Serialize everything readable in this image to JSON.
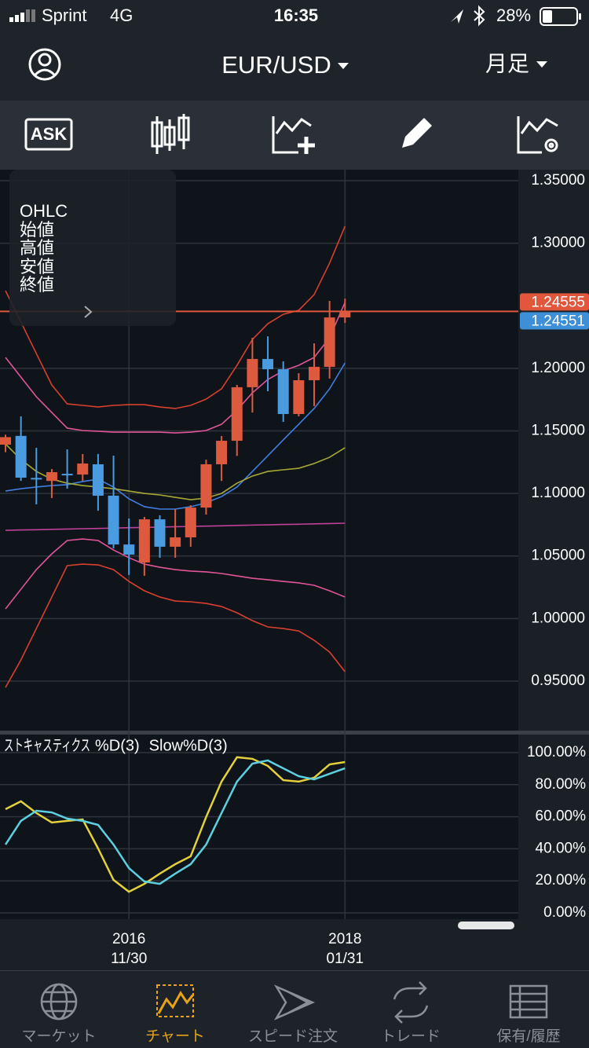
{
  "status_bar": {
    "carrier": "Sprint",
    "network": "4G",
    "time": "16:35",
    "battery": "28%"
  },
  "header": {
    "symbol": "EUR/USD",
    "period": "月足"
  },
  "toolbar": {
    "ask": "ASK"
  },
  "ohlc_panel": {
    "title": "OHLC",
    "rows": [
      "始値",
      "高値",
      "安値",
      "終値"
    ]
  },
  "chart_data": [
    {
      "type": "candlestick",
      "open": [
        1.139,
        1.146,
        1.1124,
        1.11,
        1.1157,
        1.1151,
        1.1233,
        1.0982,
        1.0592,
        1.0448,
        1.0793,
        1.0574,
        1.0649,
        1.0887,
        1.1233,
        1.1421,
        1.1849,
        1.2075,
        1.1993,
        1.1635,
        1.1905,
        1.2012,
        1.2407
      ],
      "high": [
        1.147,
        1.1616,
        1.1365,
        1.1195,
        1.1352,
        1.1315,
        1.1315,
        1.1302,
        1.08,
        1.0812,
        1.0825,
        1.0875,
        1.0906,
        1.127,
        1.1459,
        1.1867,
        1.2244,
        1.2256,
        1.2056,
        1.1961,
        1.22,
        1.2539,
        1.2557
      ],
      "low": [
        1.133,
        1.11,
        1.0913,
        1.0963,
        1.1038,
        1.11,
        1.0862,
        1.0561,
        1.0348,
        1.0341,
        1.0486,
        1.0486,
        1.0574,
        1.0831,
        1.11,
        1.13,
        1.1647,
        1.1817,
        1.1572,
        1.1616,
        1.1698,
        1.1918,
        1.2363
      ],
      "close": [
        1.145,
        1.1126,
        1.1118,
        1.117,
        1.115,
        1.1239,
        1.0982,
        1.0592,
        1.0511,
        1.0793,
        1.0574,
        1.0649,
        1.0887,
        1.1233,
        1.1421,
        1.1849,
        1.2075,
        1.1993,
        1.1635,
        1.1905,
        1.2012,
        1.2407,
        1.24555
      ],
      "up_color": "#dd5a3e",
      "down_color": "#4a9be0",
      "ylim": [
        0.9104,
        1.3588
      ],
      "yticks": [
        {
          "value": 1.35,
          "label": "1.35000"
        },
        {
          "value": 1.3,
          "label": "1.30000"
        },
        {
          "value": 1.2,
          "label": "1.20000"
        },
        {
          "value": 1.15,
          "label": "1.15000"
        },
        {
          "value": 1.1,
          "label": "1.10000"
        },
        {
          "value": 1.05,
          "label": "1.05000"
        },
        {
          "value": 1,
          "label": "1.00000"
        },
        {
          "value": 0.95,
          "label": "0.95000"
        }
      ],
      "grid": true,
      "series": [
        {
          "color": "#d8402e",
          "values": [
            1.2621,
            1.237,
            1.2118,
            1.1867,
            1.1716,
            1.1704,
            1.1691,
            1.1704,
            1.171,
            1.171,
            1.1691,
            1.1679,
            1.1704,
            1.1754,
            1.1836,
            1.2024,
            1.2231,
            1.2357,
            1.2432,
            1.2464,
            1.2589,
            1.2841,
            1.3136
          ]
        },
        {
          "color": "#e0559a",
          "values": [
            1.2087,
            1.193,
            1.1773,
            1.1647,
            1.1522,
            1.1503,
            1.1497,
            1.149,
            1.149,
            1.149,
            1.149,
            1.1484,
            1.149,
            1.1503,
            1.1553,
            1.1666,
            1.1804,
            1.1911,
            1.198,
            1.2024,
            1.2087,
            1.2244,
            1.2527
          ]
        },
        {
          "color": "#3f7fe0",
          "values": [
            1.1019,
            1.1038,
            1.1051,
            1.1063,
            1.107,
            1.1095,
            1.1114,
            1.1051,
            1.0957,
            1.0894,
            1.0875,
            1.0875,
            1.0894,
            1.0925,
            1.0975,
            1.1051,
            1.1176,
            1.1302,
            1.1428,
            1.1553,
            1.1679,
            1.1836,
            1.2043
          ]
        },
        {
          "color": "#a8a835",
          "values": [
            1.1396,
            1.1271,
            1.1176,
            1.1114,
            1.1082,
            1.1063,
            1.1051,
            1.1038,
            1.1019,
            1.1,
            1.0988,
            1.0969,
            1.095,
            1.0963,
            1.1,
            1.1082,
            1.1139,
            1.1176,
            1.1189,
            1.1201,
            1.1239,
            1.1289,
            1.1365
          ]
        },
        {
          "color": "#c0409a",
          "values": [
            1.0705,
            1.0708,
            1.071,
            1.0713,
            1.0715,
            1.0718,
            1.072,
            1.0723,
            1.0726,
            1.0728,
            1.0731,
            1.0734,
            1.0736,
            1.0739,
            1.0741,
            1.0744,
            1.0747,
            1.0749,
            1.0752,
            1.0754,
            1.0757,
            1.0759,
            1.0762
          ]
        },
        {
          "color": "#e0559a",
          "values": [
            1.0077,
            1.0234,
            1.0391,
            1.0517,
            1.0624,
            1.0636,
            1.0624,
            1.0548,
            1.0486,
            1.0435,
            1.041,
            1.0391,
            1.0379,
            1.0373,
            1.036,
            1.0341,
            1.0322,
            1.031,
            1.0297,
            1.0285,
            1.0266,
            1.0222,
            1.0172
          ]
        },
        {
          "color": "#d8402e",
          "values": [
            0.9449,
            0.9669,
            0.992,
            1.0172,
            1.0423,
            1.0435,
            1.0429,
            1.0391,
            1.0297,
            1.0222,
            1.0172,
            1.014,
            1.0134,
            1.0121,
            1.0096,
            1.0046,
            0.9983,
            0.9933,
            0.992,
            0.9901,
            0.9826,
            0.9732,
            0.9575
          ]
        }
      ],
      "price_lines": [
        {
          "value": 1.24555,
          "color": "#e0573c"
        },
        {
          "value": 1.24551,
          "color": "#3d8fd8"
        }
      ]
    },
    {
      "type": "line",
      "title": "ストキャスティクス",
      "categories": [
        null,
        null,
        null,
        null,
        null,
        null,
        null,
        null,
        {
          "year": "2016",
          "date": "11/30"
        },
        null,
        null,
        null,
        null,
        null,
        null,
        null,
        null,
        null,
        null,
        null,
        null,
        null,
        {
          "year": "2018",
          "date": "01/31"
        }
      ],
      "series": [
        {
          "name": "%D(3)",
          "color": "#e3d03a",
          "values": [
            64.7,
            69.6,
            62.3,
            56.4,
            57.4,
            58.3,
            40.2,
            20.6,
            13.2,
            18.1,
            24.5,
            30.4,
            35.3,
            59.8,
            81.9,
            97.1,
            96.1,
            91.7,
            82.8,
            81.9,
            84.3,
            92.6,
            94.1
          ]
        },
        {
          "name": "Slow%D(3)",
          "color": "#5ccfe0",
          "values": [
            42.6,
            57.4,
            63.7,
            62.7,
            58.8,
            57.4,
            54.9,
            42.6,
            27.9,
            19.6,
            18.1,
            24.5,
            30.4,
            42.6,
            62.3,
            81.9,
            93.1,
            95.1,
            90.2,
            85.3,
            83.3,
            86.8,
            90.2
          ]
        }
      ],
      "ylim": [
        -3.9,
        108.8
      ],
      "yticks": [
        {
          "value": 100,
          "label": "100.00%"
        },
        {
          "value": 80,
          "label": "80.00%"
        },
        {
          "value": 60,
          "label": "60.00%"
        },
        {
          "value": 40,
          "label": "40.00%"
        },
        {
          "value": 20,
          "label": "20.00%"
        },
        {
          "value": 0,
          "label": "0.00%"
        }
      ],
      "grid": true
    }
  ],
  "tab_bar": {
    "tabs": [
      "マーケット",
      "チャート",
      "スピード注文",
      "トレード",
      "保有/履歴"
    ]
  }
}
